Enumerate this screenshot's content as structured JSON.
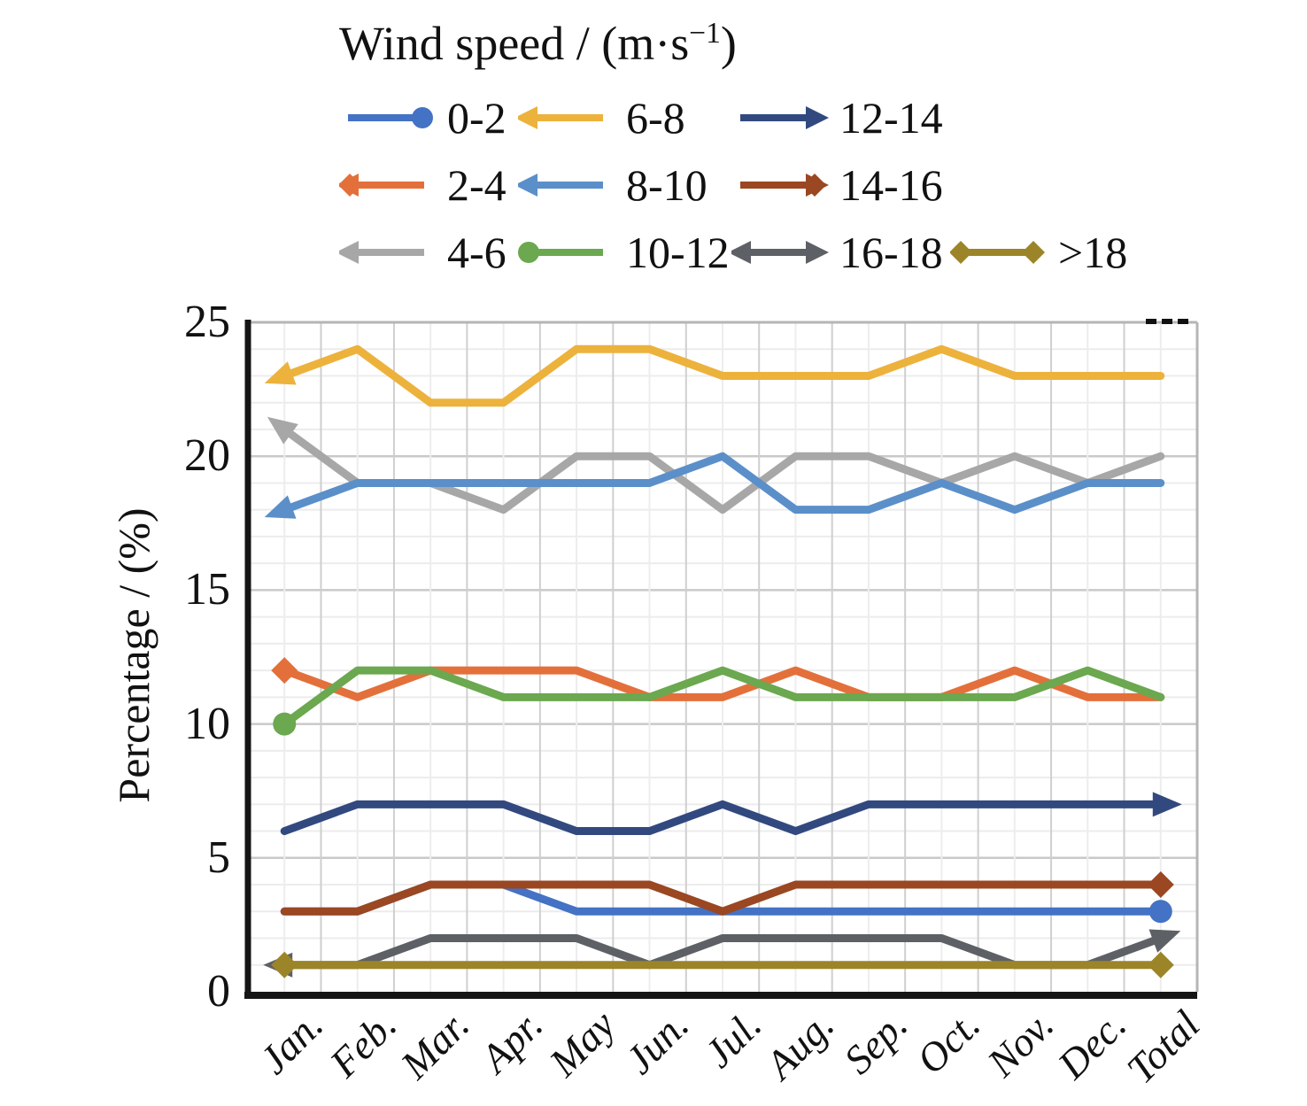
{
  "legend": {
    "title_prefix": "Wind speed / (m·s",
    "title_sup": "−1",
    "title_suffix": ")"
  },
  "y_axis": {
    "title": "Percentage / (%)"
  },
  "chart_data": {
    "type": "line",
    "title": "Wind speed / (m·s−1)",
    "xlabel": "",
    "ylabel": "Percentage / (%)",
    "ylim": [
      0,
      25
    ],
    "ytick_step": 5,
    "grid": true,
    "legend_position": "top",
    "categories": [
      "Jan.",
      "Feb.",
      "Mar.",
      "Apr.",
      "May",
      "Jun.",
      "Jul.",
      "Aug.",
      "Sep.",
      "Oct.",
      "Nov.",
      "Dec.",
      "Total"
    ],
    "series": [
      {
        "name": "0-2",
        "color": "#4472c4",
        "values": [
          3,
          3,
          4,
          4,
          3,
          3,
          3,
          3,
          3,
          3,
          3,
          3,
          3
        ],
        "chart_markers": {
          "start": "none",
          "end": "circle"
        },
        "legend_markers": {
          "left": [],
          "right": [
            "circle"
          ]
        }
      },
      {
        "name": "2-4",
        "color": "#e3703b",
        "values": [
          12,
          11,
          12,
          12,
          12,
          11,
          11,
          12,
          11,
          11,
          12,
          11,
          11
        ],
        "chart_markers": {
          "start": "diamond",
          "end": "none"
        },
        "legend_markers": {
          "left": [
            "arrow",
            "diamond"
          ],
          "right": []
        }
      },
      {
        "name": "4-6",
        "color": "#a7a7a7",
        "values": [
          21,
          19,
          19,
          18,
          20,
          20,
          18,
          20,
          20,
          19,
          20,
          19,
          20
        ],
        "chart_markers": {
          "start": "arrow",
          "end": "none"
        },
        "legend_markers": {
          "left": [
            "arrow"
          ],
          "right": []
        }
      },
      {
        "name": "6-8",
        "color": "#ecb23c",
        "values": [
          23,
          24,
          22,
          22,
          24,
          24,
          23,
          23,
          23,
          24,
          23,
          23,
          23
        ],
        "chart_markers": {
          "start": "arrow",
          "end": "none"
        },
        "legend_markers": {
          "left": [
            "arrow"
          ],
          "right": []
        }
      },
      {
        "name": "8-10",
        "color": "#5b8fc9",
        "values": [
          18,
          19,
          19,
          19,
          19,
          19,
          20,
          18,
          18,
          19,
          18,
          19,
          19
        ],
        "chart_markers": {
          "start": "arrow",
          "end": "none"
        },
        "legend_markers": {
          "left": [
            "arrow"
          ],
          "right": []
        }
      },
      {
        "name": "10-12",
        "color": "#6ba84f",
        "values": [
          10,
          12,
          12,
          11,
          11,
          11,
          12,
          11,
          11,
          11,
          11,
          12,
          11
        ],
        "chart_markers": {
          "start": "circle",
          "end": "none"
        },
        "legend_markers": {
          "left": [
            "circle"
          ],
          "right": []
        }
      },
      {
        "name": "12-14",
        "color": "#32497f",
        "values": [
          6,
          7,
          7,
          7,
          6,
          6,
          7,
          6,
          7,
          7,
          7,
          7,
          7
        ],
        "chart_markers": {
          "start": "none",
          "end": "arrow"
        },
        "legend_markers": {
          "left": [],
          "right": [
            "arrow"
          ]
        }
      },
      {
        "name": "14-16",
        "color": "#9a4722",
        "values": [
          3,
          3,
          4,
          4,
          4,
          4,
          3,
          4,
          4,
          4,
          4,
          4,
          4
        ],
        "chart_markers": {
          "start": "none",
          "end": "diamond"
        },
        "legend_markers": {
          "left": [],
          "right": [
            "arrow",
            "diamond"
          ]
        }
      },
      {
        "name": "16-18",
        "color": "#5d6166",
        "values": [
          1,
          1,
          2,
          2,
          2,
          1,
          2,
          2,
          2,
          2,
          1,
          1,
          2
        ],
        "chart_markers": {
          "start": "arrow",
          "end": "arrow"
        },
        "legend_markers": {
          "left": [
            "arrow"
          ],
          "right": [
            "arrow"
          ]
        }
      },
      {
        "name": ">18",
        "color": "#9c8528",
        "values": [
          1,
          1,
          1,
          1,
          1,
          1,
          1,
          1,
          1,
          1,
          1,
          1,
          1
        ],
        "chart_markers": {
          "start": "diamond",
          "end": "diamond"
        },
        "legend_markers": {
          "left": [
            "diamond"
          ],
          "right": [
            "diamond"
          ]
        }
      }
    ]
  }
}
